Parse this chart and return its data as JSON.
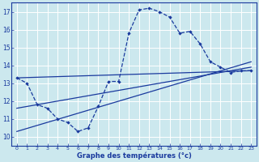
{
  "title": "",
  "xlabel": "Graphe des températures (°c)",
  "ylabel": "",
  "background_color": "#cce8ee",
  "grid_color": "#ffffff",
  "line_color": "#1a3a9e",
  "xlim": [
    -0.5,
    23.5
  ],
  "ylim": [
    9.5,
    17.5
  ],
  "yticks": [
    10,
    11,
    12,
    13,
    14,
    15,
    16,
    17
  ],
  "xticks": [
    0,
    1,
    2,
    3,
    4,
    5,
    6,
    7,
    8,
    9,
    10,
    11,
    12,
    13,
    14,
    15,
    16,
    17,
    18,
    19,
    20,
    21,
    22,
    23
  ],
  "series1_x": [
    0,
    1,
    2,
    3,
    4,
    5,
    6,
    7,
    8,
    9,
    10,
    11,
    12,
    13,
    14,
    15,
    16,
    17,
    18,
    19,
    20,
    21,
    22,
    23
  ],
  "series1_y": [
    13.3,
    13.0,
    11.8,
    11.6,
    11.0,
    10.8,
    10.3,
    10.5,
    11.7,
    13.1,
    13.1,
    15.8,
    17.1,
    17.2,
    17.0,
    16.7,
    15.8,
    15.9,
    15.2,
    14.2,
    13.9,
    13.6,
    13.7,
    13.7
  ],
  "series2_x": [
    0,
    23
  ],
  "series2_y": [
    13.3,
    13.7
  ],
  "series3_x": [
    0,
    23
  ],
  "series3_y": [
    10.3,
    14.2
  ],
  "series4_x": [
    0,
    23
  ],
  "series4_y": [
    11.6,
    13.9
  ]
}
